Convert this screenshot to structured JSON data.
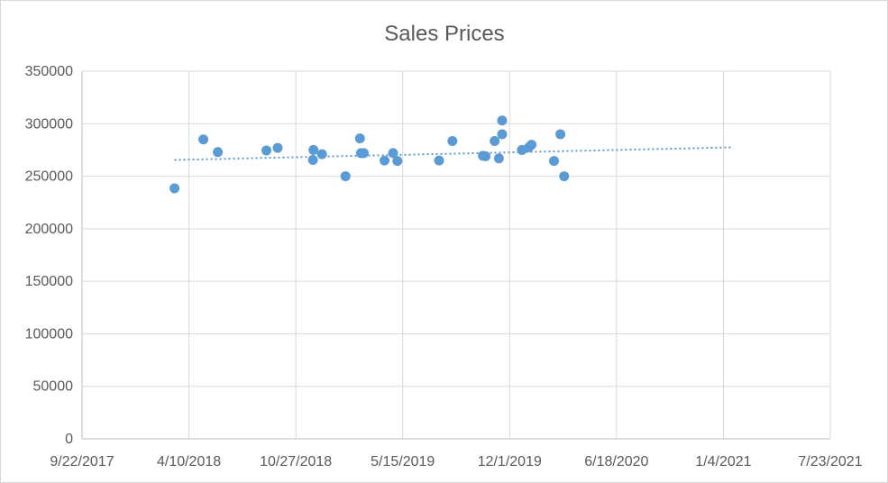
{
  "chart_data": {
    "type": "scatter",
    "title": "Sales Prices",
    "xlabel": "",
    "ylabel": "",
    "x_axis_kind": "date",
    "xlim": [
      "2017-09-22",
      "2021-07-23"
    ],
    "ylim": [
      0,
      350000
    ],
    "x_ticks": [
      "9/22/2017",
      "4/10/2018",
      "10/27/2018",
      "5/15/2019",
      "12/1/2019",
      "6/18/2020",
      "1/4/2021",
      "7/23/2021"
    ],
    "y_ticks": [
      0,
      50000,
      100000,
      150000,
      200000,
      250000,
      300000,
      350000
    ],
    "y_tick_labels": [
      "0",
      "50000",
      "100000",
      "150000",
      "200000",
      "250000",
      "300000",
      "350000"
    ],
    "grid": true,
    "legend": "none",
    "trendline": {
      "type": "linear",
      "style": "dotted",
      "start": [
        "2018-03-14",
        265500
      ],
      "end": [
        "2021-01-21",
        277500
      ]
    },
    "series": [
      {
        "color": "#5b9bd5",
        "points": [
          {
            "x": "2018-03-14",
            "y": 238500
          },
          {
            "x": "2018-05-07",
            "y": 285000
          },
          {
            "x": "2018-06-03",
            "y": 273000
          },
          {
            "x": "2018-09-02",
            "y": 274500
          },
          {
            "x": "2018-09-23",
            "y": 277000
          },
          {
            "x": "2018-11-29",
            "y": 275000
          },
          {
            "x": "2018-11-28",
            "y": 265500
          },
          {
            "x": "2018-12-15",
            "y": 271000
          },
          {
            "x": "2019-01-28",
            "y": 250000
          },
          {
            "x": "2019-02-24",
            "y": 286000
          },
          {
            "x": "2019-02-26",
            "y": 272000
          },
          {
            "x": "2019-03-03",
            "y": 272000
          },
          {
            "x": "2019-04-11",
            "y": 265000
          },
          {
            "x": "2019-04-27",
            "y": 272000
          },
          {
            "x": "2019-05-05",
            "y": 264500
          },
          {
            "x": "2019-07-22",
            "y": 265000
          },
          {
            "x": "2019-08-16",
            "y": 283500
          },
          {
            "x": "2019-10-12",
            "y": 269500
          },
          {
            "x": "2019-10-17",
            "y": 269000
          },
          {
            "x": "2019-11-03",
            "y": 283500
          },
          {
            "x": "2019-11-11",
            "y": 267000
          },
          {
            "x": "2019-11-17",
            "y": 290000
          },
          {
            "x": "2019-11-17",
            "y": 303000
          },
          {
            "x": "2019-12-24",
            "y": 275000
          },
          {
            "x": "2020-01-06",
            "y": 277500
          },
          {
            "x": "2020-01-11",
            "y": 280000
          },
          {
            "x": "2020-02-22",
            "y": 264500
          },
          {
            "x": "2020-03-05",
            "y": 290000
          },
          {
            "x": "2020-03-12",
            "y": 250000
          }
        ]
      }
    ]
  }
}
